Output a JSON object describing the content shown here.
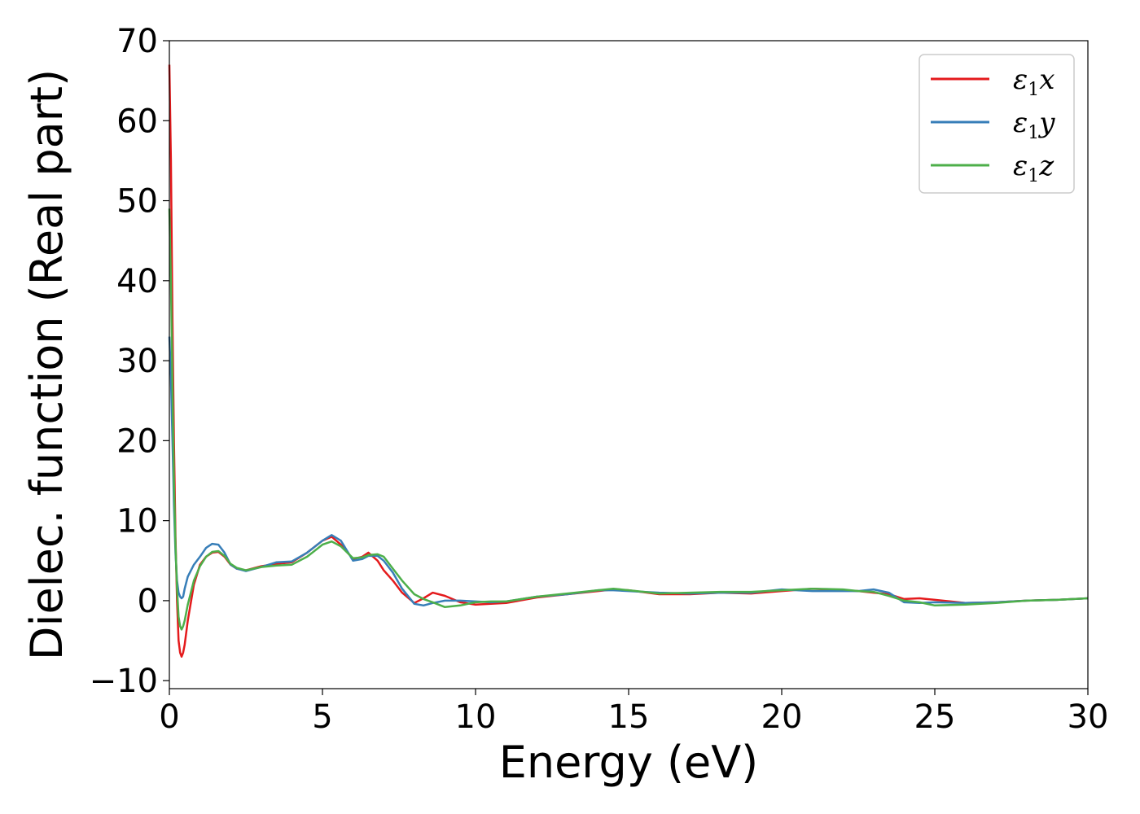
{
  "chart_data": {
    "type": "line",
    "xlabel": "Energy (eV)",
    "ylabel": "Dielec. function (Real part)",
    "xlim": [
      0,
      30
    ],
    "ylim": [
      -11,
      70
    ],
    "xticks": [
      0,
      5,
      10,
      15,
      20,
      25,
      30
    ],
    "xtick_labels": [
      "0",
      "5",
      "10",
      "15",
      "20",
      "25",
      "30"
    ],
    "yticks": [
      -10,
      0,
      10,
      20,
      30,
      40,
      50,
      60,
      70
    ],
    "ytick_labels": [
      "−10",
      "0",
      "10",
      "20",
      "30",
      "40",
      "50",
      "60",
      "70"
    ],
    "grid": false,
    "legend_position": "top-right",
    "series": [
      {
        "name": "ε1x",
        "name_base": "ε",
        "name_sub": "1",
        "name_var": "x",
        "color": "#e41a1c",
        "x": [
          0,
          0.05,
          0.1,
          0.15,
          0.2,
          0.25,
          0.3,
          0.35,
          0.4,
          0.45,
          0.5,
          0.6,
          0.8,
          1.0,
          1.2,
          1.4,
          1.6,
          1.8,
          2.0,
          2.2,
          2.5,
          3.0,
          3.5,
          4.0,
          4.5,
          5.0,
          5.3,
          5.6,
          6.0,
          6.3,
          6.5,
          6.8,
          7.0,
          7.3,
          7.6,
          8.0,
          8.3,
          8.6,
          9.0,
          9.5,
          10.0,
          10.5,
          11.0,
          12.0,
          13.0,
          14.0,
          14.5,
          15.0,
          16.0,
          17.0,
          18.0,
          19.0,
          20.0,
          21.0,
          22.0,
          22.5,
          23.0,
          23.5,
          24.0,
          24.5,
          25.0,
          26.0,
          27.0,
          28.0,
          29.0,
          30.0
        ],
        "values": [
          67,
          55,
          35,
          20,
          8,
          0,
          -5,
          -6.5,
          -7,
          -6.5,
          -5.5,
          -2.5,
          2,
          4.5,
          5.5,
          6,
          6.1,
          5.5,
          4.5,
          4.0,
          3.8,
          4.3,
          4.6,
          4.8,
          6.0,
          7.5,
          8.0,
          7.0,
          5.2,
          5.5,
          6.0,
          5.0,
          3.8,
          2.5,
          1.0,
          -0.3,
          0.3,
          1.0,
          0.6,
          -0.2,
          -0.5,
          -0.4,
          -0.3,
          0.4,
          0.8,
          1.2,
          1.4,
          1.3,
          0.8,
          0.8,
          1.0,
          0.9,
          1.2,
          1.5,
          1.3,
          1.2,
          1.0,
          0.8,
          0.2,
          0.3,
          0.1,
          -0.3,
          -0.2,
          0.0,
          0.1,
          0.3
        ]
      },
      {
        "name": "ε1y",
        "name_base": "ε",
        "name_sub": "1",
        "name_var": "y",
        "color": "#377eb8",
        "x": [
          0,
          0.05,
          0.1,
          0.15,
          0.2,
          0.25,
          0.3,
          0.35,
          0.4,
          0.45,
          0.5,
          0.6,
          0.8,
          1.0,
          1.2,
          1.4,
          1.6,
          1.8,
          2.0,
          2.2,
          2.5,
          3.0,
          3.5,
          4.0,
          4.5,
          5.0,
          5.3,
          5.6,
          6.0,
          6.3,
          6.5,
          6.8,
          7.0,
          7.3,
          7.6,
          8.0,
          8.3,
          8.6,
          9.0,
          9.5,
          10.0,
          10.5,
          11.0,
          12.0,
          13.0,
          14.0,
          14.5,
          15.0,
          16.0,
          17.0,
          18.0,
          19.0,
          20.0,
          21.0,
          22.0,
          22.5,
          23.0,
          23.5,
          24.0,
          24.5,
          25.0,
          26.0,
          27.0,
          28.0,
          29.0,
          30.0
        ],
        "values": [
          33,
          28,
          20,
          12,
          6,
          2.5,
          1,
          0.5,
          0.3,
          0.5,
          1.5,
          3.0,
          4.5,
          5.5,
          6.6,
          7.1,
          7.0,
          6.0,
          4.5,
          4.0,
          3.7,
          4.2,
          4.8,
          4.9,
          6.0,
          7.5,
          8.2,
          7.5,
          5.0,
          5.2,
          5.6,
          5.6,
          5.0,
          3.5,
          1.5,
          -0.4,
          -0.6,
          -0.3,
          0.0,
          0.0,
          -0.1,
          -0.2,
          -0.1,
          0.5,
          0.8,
          1.3,
          1.3,
          1.2,
          1.0,
          0.9,
          1.0,
          1.0,
          1.4,
          1.2,
          1.2,
          1.2,
          1.4,
          1.0,
          -0.2,
          -0.3,
          -0.2,
          -0.3,
          -0.2,
          0.0,
          0.1,
          0.3
        ]
      },
      {
        "name": "ε1z",
        "name_base": "ε",
        "name_sub": "1",
        "name_var": "z",
        "color": "#4daf4a",
        "x": [
          0,
          0.05,
          0.1,
          0.15,
          0.2,
          0.25,
          0.3,
          0.35,
          0.4,
          0.45,
          0.5,
          0.6,
          0.8,
          1.0,
          1.2,
          1.4,
          1.6,
          1.8,
          2.0,
          2.2,
          2.5,
          3.0,
          3.5,
          4.0,
          4.5,
          5.0,
          5.3,
          5.6,
          6.0,
          6.3,
          6.5,
          6.8,
          7.0,
          7.3,
          7.6,
          8.0,
          8.3,
          8.6,
          9.0,
          9.5,
          10.0,
          10.5,
          11.0,
          12.0,
          13.0,
          14.0,
          14.5,
          15.0,
          16.0,
          17.0,
          18.0,
          19.0,
          20.0,
          21.0,
          22.0,
          22.5,
          23.0,
          23.5,
          24.0,
          24.5,
          25.0,
          26.0,
          27.0,
          28.0,
          29.0,
          30.0
        ],
        "values": [
          49,
          40,
          27,
          15,
          7,
          1.5,
          -2,
          -3.2,
          -3.6,
          -3.2,
          -2.5,
          -0.5,
          2.5,
          4.3,
          5.5,
          6.1,
          6.2,
          5.6,
          4.6,
          4.1,
          3.8,
          4.2,
          4.4,
          4.5,
          5.5,
          7.0,
          7.4,
          6.8,
          5.3,
          5.4,
          5.7,
          5.8,
          5.5,
          4.0,
          2.5,
          0.8,
          0.2,
          -0.2,
          -0.8,
          -0.6,
          -0.2,
          -0.1,
          -0.1,
          0.5,
          0.9,
          1.3,
          1.5,
          1.3,
          0.9,
          1.0,
          1.1,
          1.1,
          1.3,
          1.5,
          1.4,
          1.2,
          1.1,
          0.6,
          0.0,
          -0.2,
          -0.6,
          -0.5,
          -0.3,
          0.0,
          0.1,
          0.3
        ]
      }
    ]
  }
}
